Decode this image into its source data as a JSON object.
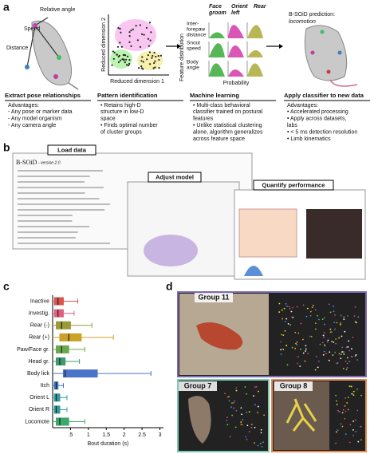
{
  "panel_labels": [
    "a",
    "b",
    "c",
    "d"
  ],
  "panel_a": {
    "pose": {
      "labels": [
        "Speed",
        "Relative angle",
        "Distance"
      ]
    },
    "embedding": {
      "y_axis": "Reduced dimension 2",
      "x_axis": "Reduced dimension 1"
    },
    "ml": {
      "classes": [
        [
          "Face",
          "groom"
        ],
        [
          "Orient",
          "left"
        ],
        [
          "Rear"
        ]
      ],
      "features": [
        [
          "Inter-",
          "forepaw",
          "distance"
        ],
        [
          "Snout",
          "speed"
        ],
        [
          "Body",
          "angle"
        ]
      ],
      "y_axis": "Feature distribution",
      "x_axis": "Probability"
    },
    "prediction": {
      "title": "B-SOiD prediction:",
      "behavior": "locomotion"
    },
    "columns": [
      {
        "heading": "Extract pose relationships",
        "lines": [
          "Advantages:",
          "- Any pose or marker data",
          "- Any model organism",
          "- Any camera angle"
        ]
      },
      {
        "heading": "Pattern identification",
        "lines": [
          "• Retains high-D",
          "structure in low-D",
          "space",
          "• Finds optimal number",
          "of cluster groups"
        ]
      },
      {
        "heading": "Machine learning",
        "lines": [
          "• Multi-class behavioral",
          "classifier trained on postural",
          "features",
          "• Unlike statistical clustering",
          "alone, algorithm generalizes",
          "across feature space"
        ]
      },
      {
        "heading": "Apply classifier to new data",
        "lines": [
          "Advantages:",
          "• Accelerated processing",
          "• Apply across datasets,",
          "labs",
          "• < 5 ms detection resolution",
          "• Limb kinematics"
        ]
      }
    ]
  },
  "panel_b": {
    "app_title": "B-SOiD",
    "app_version": "- version 2.0",
    "tabs": [
      "Load data",
      "Adjust model",
      "Quantify performance"
    ]
  },
  "chart_data": {
    "type": "box",
    "orientation": "horizontal",
    "categories": [
      "Inactive",
      "Investig.",
      "Rear (-)",
      "Rear (+)",
      "Paw/Face gr.",
      "Head gr.",
      "Body lick",
      "Itch",
      "Orient L",
      "Orient R",
      "Locomote"
    ],
    "whisker_low": [
      0,
      0,
      0,
      0,
      0,
      0,
      0,
      0,
      0,
      0,
      0
    ],
    "q1": [
      0.05,
      0.05,
      0.1,
      0.2,
      0.1,
      0.1,
      0.3,
      0.05,
      0.05,
      0.05,
      0.1
    ],
    "median": [
      0.15,
      0.15,
      0.25,
      0.45,
      0.25,
      0.2,
      0.35,
      0.1,
      0.1,
      0.1,
      0.2
    ],
    "q3": [
      0.3,
      0.3,
      0.5,
      0.8,
      0.45,
      0.35,
      1.25,
      0.15,
      0.2,
      0.2,
      0.45
    ],
    "whisker_high": [
      0.7,
      0.6,
      1.1,
      1.7,
      0.9,
      0.75,
      2.75,
      0.3,
      0.4,
      0.4,
      0.9
    ],
    "colors": [
      "#d9534f",
      "#e0607e",
      "#9a9a3a",
      "#c9a227",
      "#6aa84f",
      "#3f9a6f",
      "#4a74c9",
      "#3d6fc0",
      "#2e9a9a",
      "#2e9a9a",
      "#3aa86a"
    ],
    "xlim": [
      0,
      3.1
    ],
    "xticks": [
      {
        "value": 0.5,
        "label": ".5"
      },
      1,
      1.5,
      2,
      2.5,
      3
    ],
    "xlabel": "Bout duration (s)"
  },
  "panel_d": {
    "groups": [
      "Group 11",
      "Group 7",
      "Group 8"
    ]
  }
}
